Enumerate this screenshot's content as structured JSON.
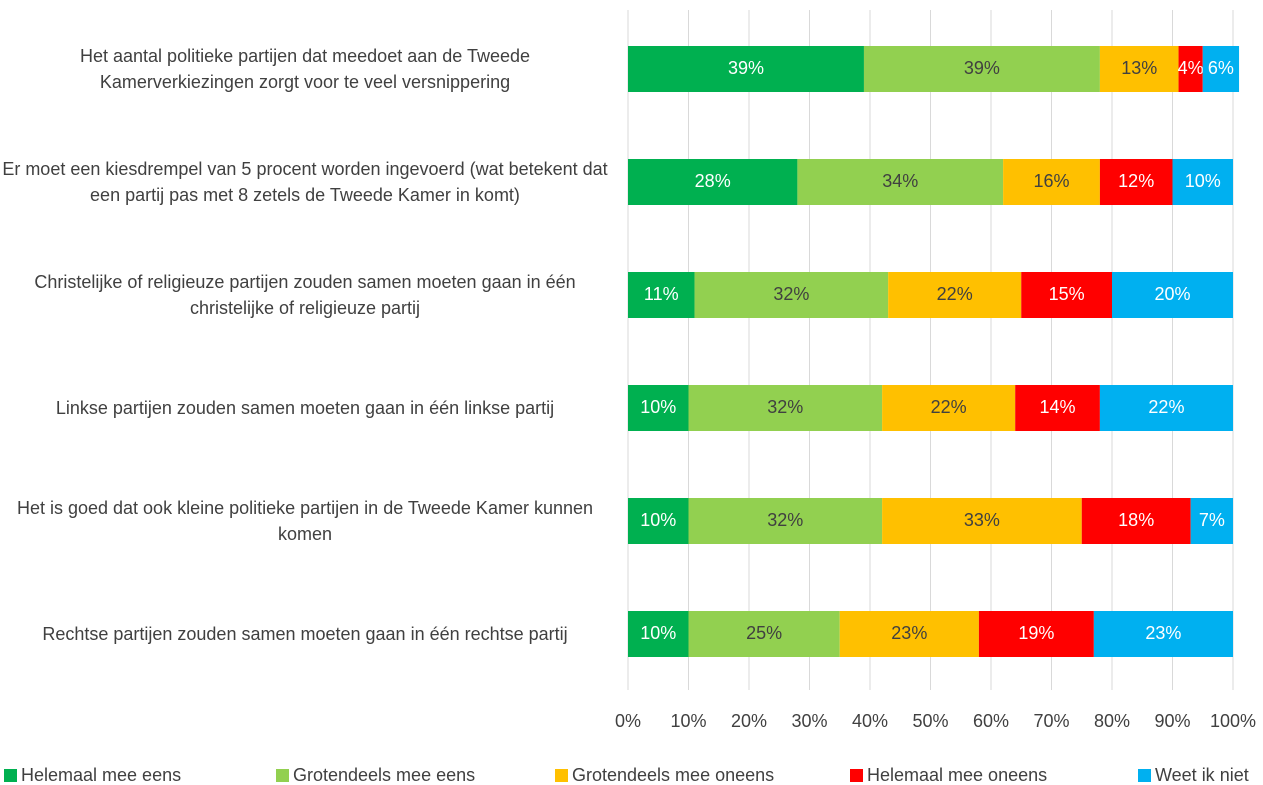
{
  "chart_data": {
    "type": "stacked-barh",
    "categories": [
      "Het aantal politieke partijen dat meedoet aan de Tweede Kamerverkiezingen zorgt voor te veel versnippering",
      "Er moet een kiesdrempel van 5 procent worden ingevoerd (wat betekent dat een partij pas met 8 zetels de Tweede Kamer in komt)",
      "Christelijke of religieuze partijen zouden samen moeten gaan in één christelijke of religieuze partij",
      "Linkse partijen zouden samen moeten gaan in één linkse partij",
      "Het is goed dat ook kleine politieke partijen in de Tweede Kamer kunnen komen",
      "Rechtse partijen zouden samen moeten gaan in één rechtse partij"
    ],
    "series": [
      {
        "name": "Helemaal mee eens",
        "color": "#00b050",
        "label_color": "#ffffff",
        "values": [
          39,
          28,
          11,
          10,
          10,
          10
        ],
        "value_labels": [
          "39%",
          "28%",
          "11%",
          "10%",
          "10%",
          "10%"
        ]
      },
      {
        "name": "Grotendeels mee eens",
        "color": "#92d050",
        "label_color": "#404040",
        "values": [
          39,
          34,
          32,
          32,
          32,
          25
        ],
        "value_labels": [
          "39%",
          "34%",
          "32%",
          "32%",
          "32%",
          "25%"
        ]
      },
      {
        "name": "Grotendeels mee oneens",
        "color": "#ffc000",
        "label_color": "#404040",
        "values": [
          13,
          16,
          22,
          22,
          33,
          23
        ],
        "value_labels": [
          "13%",
          "16%",
          "22%",
          "22%",
          "33%",
          "23%"
        ]
      },
      {
        "name": "Helemaal mee oneens",
        "color": "#ff0000",
        "label_color": "#ffffff",
        "values": [
          4,
          12,
          15,
          14,
          18,
          19
        ],
        "value_labels": [
          "4%",
          "12%",
          "15%",
          "14%",
          "18%",
          "19%"
        ]
      },
      {
        "name": "Weet ik niet",
        "color": "#00b0f0",
        "label_color": "#ffffff",
        "values": [
          6,
          10,
          20,
          22,
          7,
          23
        ],
        "value_labels": [
          "6%",
          "10%",
          "20%",
          "22%",
          "7%",
          "23%"
        ]
      }
    ],
    "xlim": [
      0,
      100
    ],
    "xticks": [
      {
        "value": 0,
        "label": "0%"
      },
      {
        "value": 10,
        "label": "10%"
      },
      {
        "value": 20,
        "label": "20%"
      },
      {
        "value": 30,
        "label": "30%"
      },
      {
        "value": 40,
        "label": "40%"
      },
      {
        "value": 50,
        "label": "50%"
      },
      {
        "value": 60,
        "label": "60%"
      },
      {
        "value": 70,
        "label": "70%"
      },
      {
        "value": 80,
        "label": "80%"
      },
      {
        "value": 90,
        "label": "90%"
      },
      {
        "value": 100,
        "label": "100%"
      }
    ],
    "grid": true,
    "legend": "bottom"
  }
}
